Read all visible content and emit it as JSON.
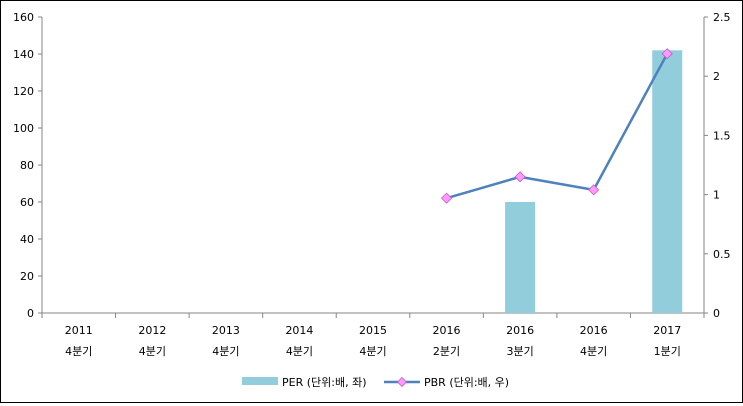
{
  "chart_data": {
    "type": "bar+line",
    "categories": [
      {
        "year": "2011",
        "quarter": "4분기"
      },
      {
        "year": "2012",
        "quarter": "4분기"
      },
      {
        "year": "2013",
        "quarter": "4분기"
      },
      {
        "year": "2014",
        "quarter": "4분기"
      },
      {
        "year": "2015",
        "quarter": "4분기"
      },
      {
        "year": "2016",
        "quarter": "2분기"
      },
      {
        "year": "2016",
        "quarter": "3분기"
      },
      {
        "year": "2016",
        "quarter": "4분기"
      },
      {
        "year": "2017",
        "quarter": "1분기"
      }
    ],
    "series": [
      {
        "name": "PER (단위:배, 좌)",
        "type": "bar",
        "axis": "left",
        "color": "#92CDDC",
        "values": [
          null,
          null,
          null,
          null,
          null,
          null,
          60,
          null,
          142
        ]
      },
      {
        "name": "PBR (단위:배, 우)",
        "type": "line",
        "axis": "right",
        "color": "#4F81BD",
        "marker_color": "#FF99FF",
        "marker": "diamond",
        "values": [
          null,
          null,
          null,
          null,
          null,
          0.97,
          1.15,
          1.04,
          2.19
        ]
      }
    ],
    "y_left": {
      "min": 0,
      "max": 160,
      "ticks": [
        "0",
        "20",
        "40",
        "60",
        "80",
        "100",
        "120",
        "140",
        "160"
      ]
    },
    "y_right": {
      "min": 0,
      "max": 2.5,
      "ticks": [
        "0",
        "0.5",
        "1",
        "1.5",
        "2",
        "2.5"
      ]
    },
    "grid": false,
    "legend_position": "bottom"
  }
}
